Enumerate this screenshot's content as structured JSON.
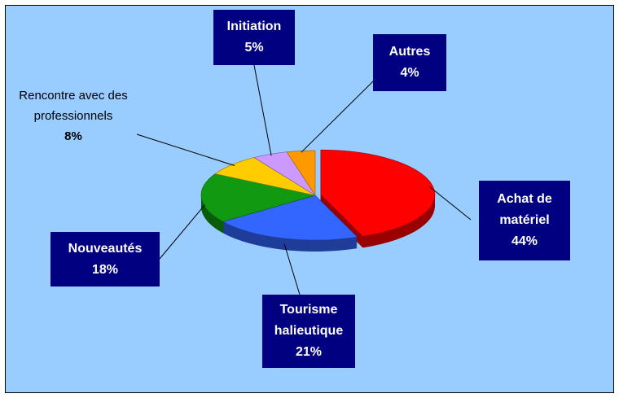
{
  "chart_data": {
    "type": "pie",
    "categories": [
      "Achat de matériel",
      "Tourisme halieutique",
      "Nouveautés",
      "Rencontre avec des professionnels",
      "Initiation",
      "Autres"
    ],
    "values": [
      44,
      21,
      18,
      8,
      5,
      4
    ],
    "value_labels": [
      "44%",
      "21%",
      "18%",
      "8%",
      "5%",
      "4%"
    ],
    "colors": [
      "#ff0000",
      "#3366ff",
      "#119911",
      "#ffcc00",
      "#cc99ff",
      "#ff9900"
    ]
  }
}
